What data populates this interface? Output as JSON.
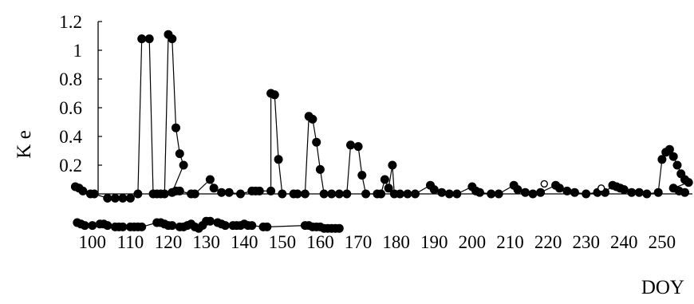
{
  "chart_data": {
    "type": "scatter",
    "title": "",
    "xlabel": "DOY",
    "ylabel": "K e",
    "xlim": [
      95,
      258
    ],
    "ylim": [
      0,
      1.2
    ],
    "yticks": [
      "1.2",
      "1",
      "0.8",
      "0.6",
      "0.4",
      "0.2"
    ],
    "xticks": [
      "100",
      "110",
      "120",
      "130",
      "140",
      "150",
      "160",
      "170",
      "180",
      "190",
      "200",
      "210",
      "220",
      "230",
      "240",
      "250"
    ],
    "grid": false,
    "legend": "none",
    "series": [
      {
        "marker": "filled-circle",
        "connected": true,
        "values": [
          [
            95.5,
            0.05
          ],
          [
            96.5,
            0.04
          ],
          [
            97.5,
            0.02
          ],
          [
            99.5,
            0.0
          ],
          [
            100.5,
            0.0
          ],
          [
            104,
            -0.03
          ],
          [
            106,
            -0.03
          ],
          [
            108,
            -0.03
          ],
          [
            110,
            -0.03
          ],
          [
            112,
            0.0
          ],
          [
            113,
            1.08
          ],
          [
            115,
            1.08
          ],
          [
            116,
            0.0
          ],
          [
            117,
            0.0
          ],
          [
            118,
            0.0
          ],
          [
            119,
            0.0
          ],
          [
            120,
            1.11
          ],
          [
            121,
            1.08
          ],
          [
            122,
            0.46
          ],
          [
            123,
            0.28
          ],
          [
            124,
            0.2
          ],
          [
            121,
            0.01
          ],
          [
            122,
            0.02
          ],
          [
            123,
            0.02
          ],
          [
            126,
            0.0
          ],
          [
            127,
            0.0
          ],
          [
            131,
            0.1
          ],
          [
            132,
            0.04
          ],
          [
            134,
            0.01
          ],
          [
            136,
            0.01
          ],
          [
            139,
            0.0
          ],
          [
            142,
            0.02
          ],
          [
            143,
            0.02
          ],
          [
            144,
            0.02
          ],
          [
            147,
            0.02
          ],
          [
            147,
            0.7
          ],
          [
            148,
            0.69
          ],
          [
            149,
            0.24
          ],
          [
            150,
            0.0
          ],
          [
            153,
            0.0
          ],
          [
            154,
            0.0
          ],
          [
            156,
            0.0
          ],
          [
            157,
            0.54
          ],
          [
            158,
            0.52
          ],
          [
            159,
            0.36
          ],
          [
            160,
            0.17
          ],
          [
            161,
            0.0
          ],
          [
            163,
            0.0
          ],
          [
            165,
            0.0
          ],
          [
            167,
            0.0
          ],
          [
            168,
            0.34
          ],
          [
            170,
            0.33
          ],
          [
            171,
            0.13
          ],
          [
            172,
            0.0
          ],
          [
            175,
            0.0
          ],
          [
            176,
            0.0
          ],
          [
            177,
            0.1
          ],
          [
            178,
            0.04
          ],
          [
            179,
            0.2
          ],
          [
            179.5,
            0.0
          ],
          [
            181,
            0.0
          ],
          [
            183,
            0.0
          ],
          [
            185,
            0.0
          ],
          [
            189,
            0.06
          ],
          [
            190,
            0.03
          ],
          [
            192,
            0.01
          ],
          [
            194,
            0.0
          ],
          [
            196,
            0.0
          ],
          [
            200,
            0.05
          ],
          [
            201,
            0.02
          ],
          [
            202,
            0.01
          ],
          [
            205,
            0.0
          ],
          [
            207,
            0.0
          ],
          [
            211,
            0.06
          ],
          [
            212,
            0.03
          ],
          [
            214,
            0.01
          ],
          [
            216,
            0.0
          ],
          [
            218,
            0.01
          ],
          [
            222,
            0.06
          ],
          [
            223,
            0.04
          ],
          [
            225,
            0.02
          ],
          [
            227,
            0.01
          ],
          [
            230,
            0.0
          ],
          [
            233,
            0.01
          ],
          [
            235,
            0.01
          ],
          [
            237,
            0.06
          ],
          [
            238,
            0.05
          ],
          [
            239,
            0.04
          ],
          [
            240,
            0.03
          ],
          [
            242,
            0.01
          ],
          [
            244,
            0.01
          ],
          [
            246,
            0.0
          ],
          [
            249,
            0.01
          ],
          [
            250,
            0.24
          ],
          [
            251,
            0.29
          ],
          [
            252,
            0.31
          ],
          [
            253,
            0.26
          ],
          [
            254,
            0.2
          ],
          [
            255,
            0.14
          ],
          [
            256,
            0.1
          ],
          [
            257,
            0.08
          ],
          [
            253,
            0.04
          ],
          [
            254.5,
            0.02
          ],
          [
            256,
            0.01
          ]
        ]
      },
      {
        "marker": "open-circle",
        "connected": false,
        "values": [
          [
            219,
            0.07
          ],
          [
            234,
            0.04
          ]
        ]
      },
      {
        "marker": "filled-circle",
        "connected": true,
        "values": [
          [
            96,
            -0.2
          ],
          [
            97,
            -0.21
          ],
          [
            98,
            -0.22
          ],
          [
            100,
            -0.22
          ],
          [
            102,
            -0.21
          ],
          [
            103,
            -0.21
          ],
          [
            104,
            -0.22
          ],
          [
            106,
            -0.23
          ],
          [
            107,
            -0.23
          ],
          [
            108,
            -0.23
          ],
          [
            110,
            -0.23
          ],
          [
            111,
            -0.23
          ],
          [
            112,
            -0.23
          ],
          [
            113,
            -0.23
          ],
          [
            117,
            -0.2
          ],
          [
            118,
            -0.2
          ],
          [
            119,
            -0.21
          ],
          [
            120,
            -0.22
          ],
          [
            121,
            -0.22
          ],
          [
            123,
            -0.23
          ],
          [
            124,
            -0.23
          ],
          [
            125,
            -0.22
          ],
          [
            126,
            -0.21
          ],
          [
            127,
            -0.23
          ],
          [
            128,
            -0.24
          ],
          [
            129,
            -0.22
          ],
          [
            130,
            -0.19
          ],
          [
            131,
            -0.19
          ],
          [
            133,
            -0.2
          ],
          [
            134,
            -0.21
          ],
          [
            135,
            -0.22
          ],
          [
            137,
            -0.22
          ],
          [
            138,
            -0.22
          ],
          [
            139,
            -0.22
          ],
          [
            140,
            -0.21
          ],
          [
            141,
            -0.22
          ],
          [
            142,
            -0.22
          ],
          [
            145,
            -0.23
          ],
          [
            146,
            -0.23
          ],
          [
            156,
            -0.22
          ],
          [
            157,
            -0.22
          ],
          [
            158,
            -0.23
          ],
          [
            159,
            -0.23
          ],
          [
            160,
            -0.23
          ],
          [
            161,
            -0.24
          ],
          [
            162,
            -0.24
          ],
          [
            163,
            -0.24
          ],
          [
            164,
            -0.24
          ],
          [
            165,
            -0.24
          ]
        ]
      }
    ]
  }
}
